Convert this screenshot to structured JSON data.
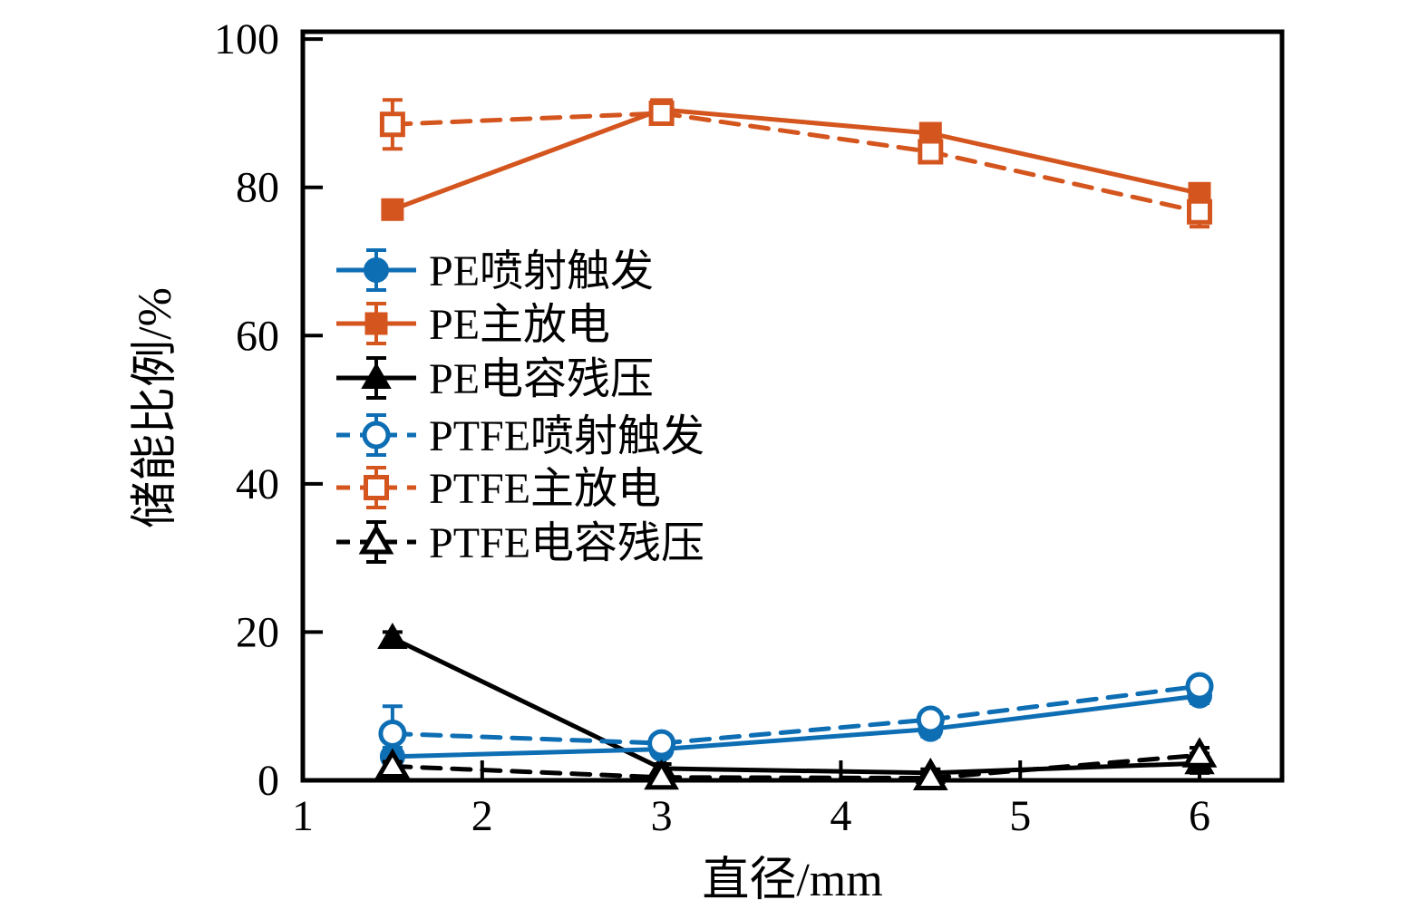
{
  "figure": {
    "background": "#ffffff"
  },
  "colors": {
    "blue": "#0e6eb4",
    "orange": "#d4551e",
    "black": "#000000"
  },
  "chart_data": {
    "type": "line",
    "title": "",
    "xlabel": "直径/mm",
    "ylabel": "储能比例/%",
    "xlim": [
      1,
      6.46
    ],
    "ylim": [
      0,
      101
    ],
    "x_ticks": [
      1,
      2,
      3,
      4,
      5,
      6
    ],
    "y_ticks": [
      0,
      20,
      40,
      60,
      80,
      100
    ],
    "grid": false,
    "legend_position": "inside-left-middle",
    "x": [
      1.5,
      3,
      4.5,
      6
    ],
    "series": [
      {
        "name": "PE喷射触发",
        "color": "#0e6eb4",
        "line": "solid",
        "marker": "circle",
        "fill": "filled",
        "values": [
          3.2,
          4.2,
          6.9,
          11.4
        ],
        "errors": [
          1.2,
          0.8,
          1.0,
          1.0
        ]
      },
      {
        "name": "PE主放电",
        "color": "#d4551e",
        "line": "solid",
        "marker": "square",
        "fill": "filled",
        "values": [
          77.0,
          90.5,
          87.3,
          79.2
        ],
        "errors": [
          1.0,
          0.8,
          1.0,
          0.8
        ]
      },
      {
        "name": "PE电容残压",
        "color": "#000000",
        "line": "solid",
        "marker": "triangle",
        "fill": "filled",
        "values": [
          19.2,
          1.6,
          1.0,
          2.3
        ],
        "errors": [
          0.8,
          0.6,
          0.5,
          1.3
        ]
      },
      {
        "name": "PTFE喷射触发",
        "color": "#0e6eb4",
        "line": "dashed",
        "marker": "circle",
        "fill": "open",
        "values": [
          6.3,
          5.0,
          8.2,
          12.7
        ],
        "errors": [
          3.7,
          0.8,
          0.8,
          0.6
        ]
      },
      {
        "name": "PTFE主放电",
        "color": "#d4551e",
        "line": "dashed",
        "marker": "square",
        "fill": "open",
        "values": [
          88.5,
          90.0,
          84.8,
          76.7
        ],
        "errors": [
          3.3,
          0.8,
          0.8,
          2.0
        ]
      },
      {
        "name": "PTFE电容残压",
        "color": "#000000",
        "line": "dashed",
        "marker": "triangle",
        "fill": "open",
        "values": [
          1.9,
          0.4,
          0.3,
          3.4
        ],
        "errors": [
          0.6,
          0.3,
          0.3,
          1.0
        ]
      }
    ]
  }
}
